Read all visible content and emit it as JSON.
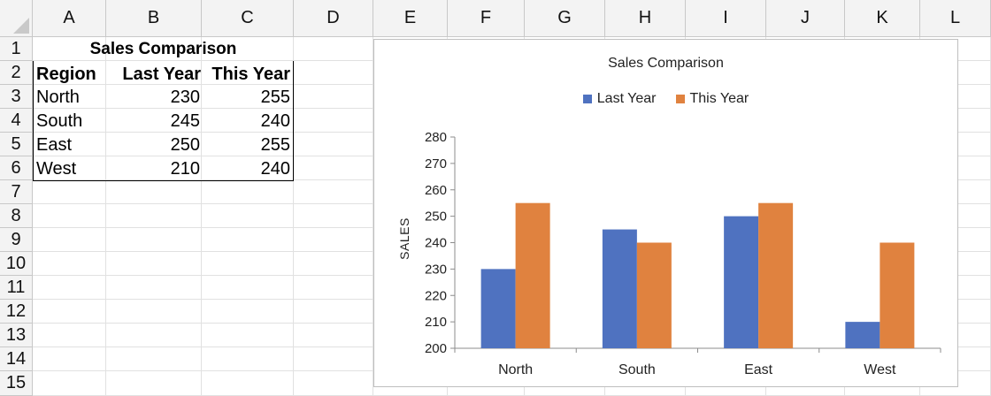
{
  "spreadsheet": {
    "column_headers": [
      "A",
      "B",
      "C",
      "D",
      "E",
      "F",
      "G",
      "H",
      "I",
      "J",
      "K",
      "L"
    ],
    "row_headers": [
      "1",
      "2",
      "3",
      "4",
      "5",
      "6",
      "7",
      "8",
      "9",
      "10",
      "11",
      "12",
      "13",
      "14",
      "15"
    ],
    "title": "Sales Comparison",
    "table_headers": [
      "Region",
      "Last Year",
      "This Year"
    ],
    "rows": [
      {
        "region": "North",
        "last_year": "230",
        "this_year": "255"
      },
      {
        "region": "South",
        "last_year": "245",
        "this_year": "240"
      },
      {
        "region": "East",
        "last_year": "250",
        "this_year": "255"
      },
      {
        "region": "West",
        "last_year": "210",
        "this_year": "240"
      }
    ]
  },
  "colors": {
    "last_year": "#4f72c0",
    "this_year": "#e0823f"
  },
  "chart_data": {
    "type": "bar",
    "title": "Sales Comparison",
    "categories": [
      "North",
      "South",
      "East",
      "West"
    ],
    "series": [
      {
        "name": "Last Year",
        "values": [
          230,
          245,
          250,
          210
        ]
      },
      {
        "name": "This Year",
        "values": [
          255,
          240,
          255,
          240
        ]
      }
    ],
    "xlabel": "",
    "ylabel": "SALES",
    "ylim": [
      200,
      280
    ],
    "yticks": [
      200,
      210,
      220,
      230,
      240,
      250,
      260,
      270,
      280
    ],
    "grid": false,
    "legend_position": "top"
  }
}
